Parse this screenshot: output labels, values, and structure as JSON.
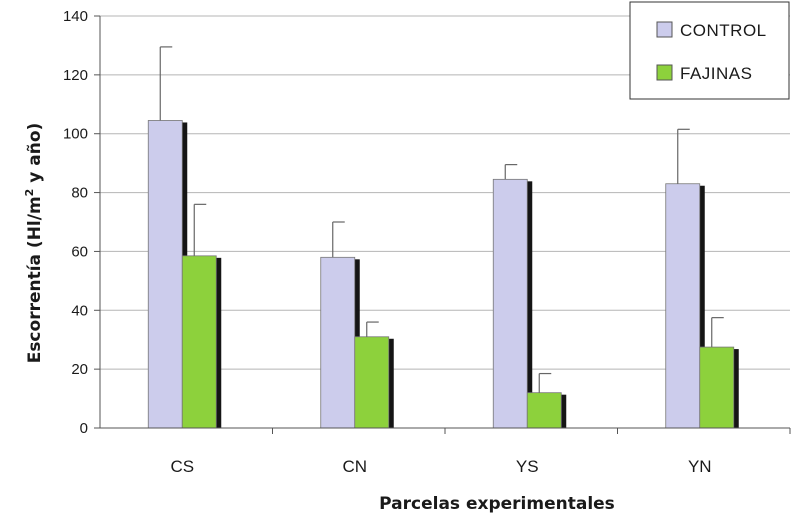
{
  "chart_data": {
    "type": "bar",
    "categories": [
      "CS",
      "CN",
      "YS",
      "YN"
    ],
    "series": [
      {
        "name": "CONTROL",
        "color": "#ccccec",
        "values": [
          104.5,
          58,
          84.5,
          83
        ],
        "error_upper": [
          129.5,
          70,
          89.5,
          101.5
        ]
      },
      {
        "name": "FAJINAS",
        "color": "#8dd13c",
        "values": [
          58.5,
          31,
          12,
          27.5
        ],
        "error_upper": [
          76,
          36,
          18.5,
          37.5
        ]
      }
    ],
    "ylabel_main": "Escorrentía (Hl/m",
    "ylabel_sup": "2",
    "ylabel_end": " y año)",
    "xlabel": "Parcelas experimentales",
    "ylim": [
      0,
      140
    ],
    "yticks": [
      0,
      20,
      40,
      60,
      80,
      100,
      120,
      140
    ],
    "grid": true,
    "legend_position": "top-right"
  }
}
